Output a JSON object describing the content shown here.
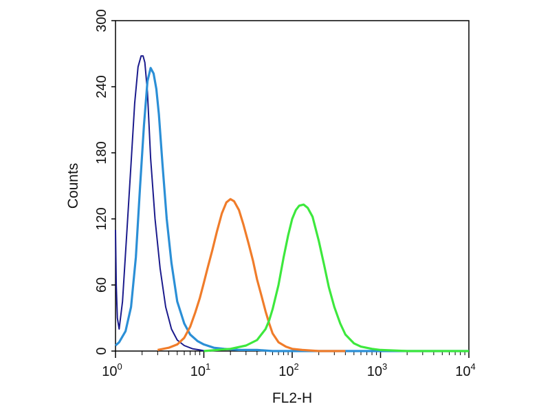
{
  "chart_data": {
    "type": "line",
    "title": "",
    "xlabel": "FL2-H",
    "ylabel": "Counts",
    "x_scale": "log",
    "xlim": [
      1,
      10000
    ],
    "ylim": [
      0,
      300
    ],
    "x_ticks": [
      {
        "base": "10",
        "exp": "0",
        "value": 1
      },
      {
        "base": "10",
        "exp": "1",
        "value": 10
      },
      {
        "base": "10",
        "exp": "2",
        "value": 100
      },
      {
        "base": "10",
        "exp": "3",
        "value": 1000
      },
      {
        "base": "10",
        "exp": "4",
        "value": 10000
      }
    ],
    "y_ticks": [
      "0",
      "60",
      "120",
      "180",
      "240",
      "300"
    ],
    "grid": false,
    "legend": "none",
    "series": [
      {
        "color": "#1a1a8c",
        "x": [
          1.0,
          1.02,
          1.05,
          1.1,
          1.2,
          1.35,
          1.5,
          1.65,
          1.8,
          1.95,
          2.05,
          2.15,
          2.3,
          2.5,
          2.8,
          3.2,
          3.7,
          4.3,
          5.0,
          6.0,
          7.5,
          9.0,
          10.5,
          12.0
        ],
        "y": [
          110,
          60,
          30,
          20,
          45,
          110,
          170,
          225,
          258,
          268,
          268,
          262,
          235,
          175,
          120,
          75,
          40,
          20,
          10,
          5,
          2,
          1,
          0,
          0
        ]
      },
      {
        "color": "#2b8fd6",
        "x": [
          1.0,
          1.1,
          1.3,
          1.5,
          1.7,
          1.9,
          2.1,
          2.3,
          2.5,
          2.7,
          2.9,
          3.1,
          3.4,
          3.8,
          4.3,
          5.0,
          6.0,
          7.0,
          8.5,
          10.0,
          13.0,
          17.0,
          25.0,
          40.0,
          60.0,
          100.0,
          10000.0
        ],
        "y": [
          5,
          8,
          18,
          40,
          85,
          150,
          205,
          245,
          257,
          252,
          238,
          215,
          170,
          120,
          80,
          45,
          25,
          15,
          9,
          6,
          3,
          2,
          1,
          1,
          0,
          0,
          0
        ]
      },
      {
        "color": "#f07c2a",
        "x": [
          3.0,
          4.0,
          5.0,
          6.0,
          7.0,
          8.0,
          9.0,
          10.0,
          11.0,
          12.5,
          14.0,
          16.0,
          18.0,
          20.0,
          22.0,
          25.0,
          28.0,
          32.0,
          36.0,
          40.0,
          45.0,
          50.0,
          55.0,
          60.0,
          70.0,
          85.0,
          100.0,
          130.0,
          200.0,
          400.0
        ],
        "y": [
          1,
          3,
          6,
          12,
          22,
          35,
          48,
          62,
          75,
          92,
          108,
          125,
          135,
          138,
          136,
          128,
          115,
          98,
          82,
          65,
          50,
          36,
          25,
          16,
          8,
          4,
          2,
          1,
          0,
          0
        ]
      },
      {
        "color": "#3de83d",
        "x": [
          10.0,
          20.0,
          30.0,
          40.0,
          50.0,
          55.0,
          60.0,
          70.0,
          80.0,
          90.0,
          100.0,
          110.0,
          120.0,
          135.0,
          150.0,
          170.0,
          200.0,
          230.0,
          260.0,
          300.0,
          350.0,
          400.0,
          500.0,
          600.0,
          800.0,
          1000.0,
          2000.0,
          10000.0
        ],
        "y": [
          0,
          2,
          5,
          10,
          20,
          28,
          38,
          60,
          85,
          105,
          120,
          128,
          132,
          133,
          130,
          122,
          100,
          78,
          58,
          40,
          25,
          15,
          7,
          4,
          2,
          1,
          0,
          0
        ]
      }
    ]
  }
}
